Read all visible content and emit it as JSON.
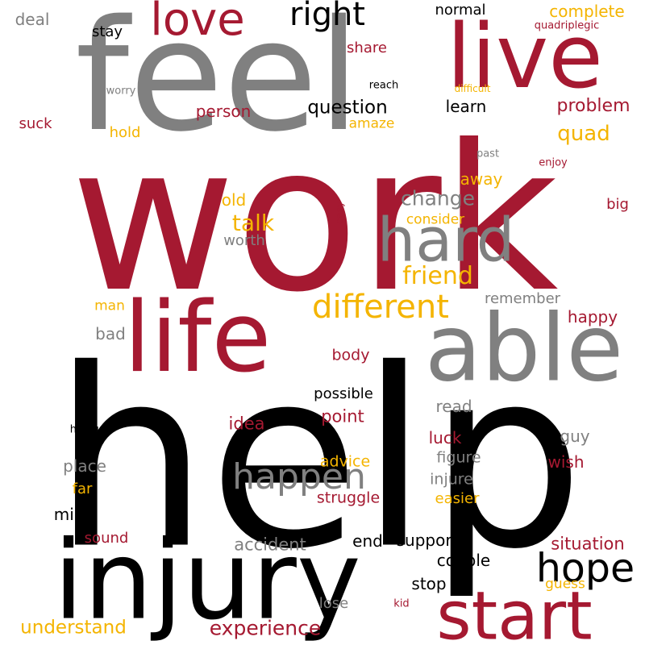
{
  "palette": {
    "red": "#a51931",
    "gray": "#808080",
    "black": "#000000",
    "gold": "#f4b400"
  },
  "words": [
    {
      "text": "work",
      "color": "red"
    },
    {
      "text": "help",
      "color": "black"
    },
    {
      "text": "feel",
      "color": "gray"
    },
    {
      "text": "injury",
      "color": "black"
    },
    {
      "text": "live",
      "color": "red"
    },
    {
      "text": "able",
      "color": "gray"
    },
    {
      "text": "life",
      "color": "red"
    },
    {
      "text": "start",
      "color": "red"
    },
    {
      "text": "hard",
      "color": "gray"
    },
    {
      "text": "love",
      "color": "red"
    },
    {
      "text": "right",
      "color": "black"
    },
    {
      "text": "different",
      "color": "gold"
    },
    {
      "text": "happen",
      "color": "gray"
    },
    {
      "text": "hope",
      "color": "black"
    },
    {
      "text": "question",
      "color": "black"
    },
    {
      "text": "talk",
      "color": "gold"
    },
    {
      "text": "change",
      "color": "gray"
    },
    {
      "text": "friend",
      "color": "gold"
    },
    {
      "text": "experience",
      "color": "red"
    },
    {
      "text": "understand",
      "color": "gold"
    },
    {
      "text": "problem",
      "color": "red"
    },
    {
      "text": "quad",
      "color": "gold"
    },
    {
      "text": "complete",
      "color": "gold"
    },
    {
      "text": "learn",
      "color": "black"
    },
    {
      "text": "person",
      "color": "red"
    },
    {
      "text": "share",
      "color": "red"
    },
    {
      "text": "normal",
      "color": "black"
    },
    {
      "text": "stay",
      "color": "black"
    },
    {
      "text": "deal",
      "color": "gray"
    },
    {
      "text": "suck",
      "color": "red"
    },
    {
      "text": "hold",
      "color": "gold"
    },
    {
      "text": "amaze",
      "color": "gold"
    },
    {
      "text": "worry",
      "color": "gray"
    },
    {
      "text": "reach",
      "color": "black"
    },
    {
      "text": "difficult",
      "color": "gold"
    },
    {
      "text": "quadriplegic",
      "color": "red"
    },
    {
      "text": "past",
      "color": "gray"
    },
    {
      "text": "enjoy",
      "color": "red"
    },
    {
      "text": "away",
      "color": "gold"
    },
    {
      "text": "old",
      "color": "gold"
    },
    {
      "text": "easy",
      "color": "red"
    },
    {
      "text": "consider",
      "color": "gold"
    },
    {
      "text": "big",
      "color": "red"
    },
    {
      "text": "worth",
      "color": "gray"
    },
    {
      "text": "remember",
      "color": "gray"
    },
    {
      "text": "man",
      "color": "gold"
    },
    {
      "text": "happy",
      "color": "red"
    },
    {
      "text": "bad",
      "color": "gray"
    },
    {
      "text": "body",
      "color": "red"
    },
    {
      "text": "possible",
      "color": "black"
    },
    {
      "text": "read",
      "color": "gray"
    },
    {
      "text": "point",
      "color": "red"
    },
    {
      "text": "idea",
      "color": "red"
    },
    {
      "text": "helpful",
      "color": "black"
    },
    {
      "text": "luck",
      "color": "red"
    },
    {
      "text": "guy",
      "color": "gray"
    },
    {
      "text": "place",
      "color": "gray"
    },
    {
      "text": "advice",
      "color": "gold"
    },
    {
      "text": "figure",
      "color": "gray"
    },
    {
      "text": "wish",
      "color": "red"
    },
    {
      "text": "far",
      "color": "gold"
    },
    {
      "text": "injure",
      "color": "gray"
    },
    {
      "text": "struggle",
      "color": "red"
    },
    {
      "text": "easier",
      "color": "gold"
    },
    {
      "text": "mind",
      "color": "black"
    },
    {
      "text": "sound",
      "color": "red"
    },
    {
      "text": "end",
      "color": "black"
    },
    {
      "text": "support",
      "color": "black"
    },
    {
      "text": "situation",
      "color": "red"
    },
    {
      "text": "accident",
      "color": "gray"
    },
    {
      "text": "couple",
      "color": "black"
    },
    {
      "text": "stop",
      "color": "black"
    },
    {
      "text": "guess",
      "color": "gold"
    },
    {
      "text": "lose",
      "color": "gray"
    },
    {
      "text": "kid",
      "color": "red"
    }
  ]
}
